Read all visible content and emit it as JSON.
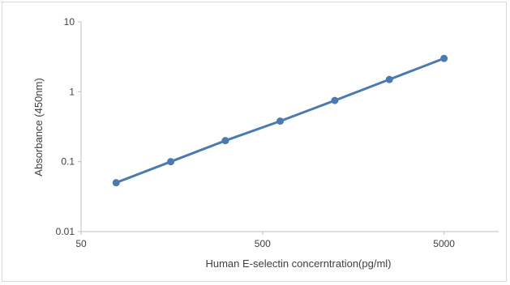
{
  "chart_data": {
    "type": "line",
    "title": "",
    "xlabel": "Human E-selectin concerntration(pg/ml)",
    "ylabel": "Absorbance (450nm)",
    "x_scale": "log",
    "y_scale": "log",
    "xlim": [
      50,
      10000
    ],
    "ylim": [
      0.01,
      10
    ],
    "x_ticks": [
      50,
      500,
      5000
    ],
    "x_tick_labels": [
      "50",
      "500",
      "5000"
    ],
    "y_ticks": [
      0.01,
      0.1,
      1,
      10
    ],
    "y_tick_labels": [
      "0.01",
      "0.1",
      "1",
      "10"
    ],
    "grid": false,
    "legend": "none",
    "series": [
      {
        "color": "#4a7ab0",
        "x": [
          78,
          156,
          312,
          625,
          1250,
          2500,
          5000
        ],
        "y": [
          0.05,
          0.1,
          0.2,
          0.38,
          0.75,
          1.5,
          3.0
        ]
      }
    ]
  }
}
